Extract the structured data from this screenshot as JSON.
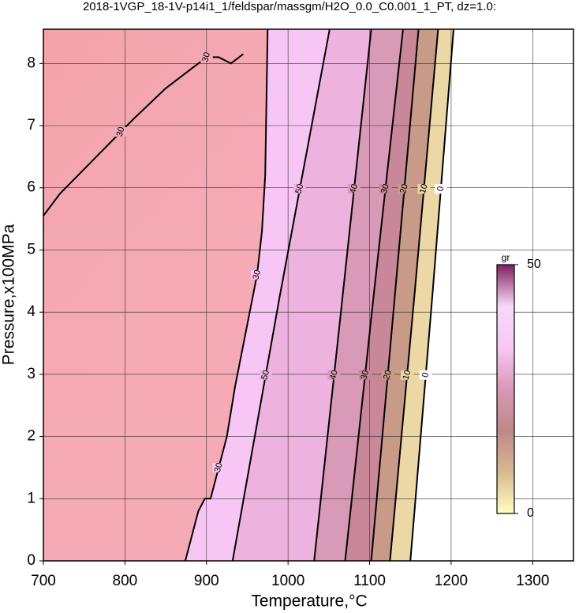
{
  "chart_data": {
    "type": "contour",
    "title": "2018-1VGP_18-1V-p14i1_1/feldspar/massgm/H2O_0.0_C0.001_1_PT, dz=1.0:",
    "x_label": "Temperature,°C",
    "y_label": "Pressure,x100MPa",
    "xlim": [
      700,
      1350
    ],
    "ylim": [
      0,
      8.55
    ],
    "xticks": [
      700,
      800,
      900,
      1000,
      1100,
      1200,
      1300
    ],
    "yticks": [
      0,
      1,
      2,
      3,
      4,
      5,
      6,
      7,
      8
    ],
    "grid": true,
    "background": "#f5aab6",
    "contours": [
      {
        "level": 30,
        "fill": "#f8c6f4",
        "x": [
          874,
          890,
          898,
          905,
          925,
          935,
          950,
          962,
          968,
          972,
          975
        ],
        "y": [
          0,
          0.8,
          1.0,
          1.0,
          2.0,
          2.8,
          3.8,
          4.6,
          5.3,
          6.2,
          8.55
        ]
      },
      {
        "level": 50,
        "fill": "#eeb2de",
        "x": [
          932,
          990,
          1051
        ],
        "y": [
          0,
          4.27,
          8.55
        ]
      },
      {
        "level": 40,
        "fill": "#d89ab6",
        "x": [
          1032,
          1067,
          1102
        ],
        "y": [
          0,
          4.27,
          8.55
        ]
      },
      {
        "level": 30,
        "fill": "#c8889a",
        "x": [
          1070,
          1105,
          1141
        ],
        "y": [
          0,
          4.27,
          8.55
        ]
      },
      {
        "level": 20,
        "fill": "#c89a88",
        "x": [
          1102,
          1131,
          1160
        ],
        "y": [
          0,
          4.27,
          8.55
        ]
      },
      {
        "level": 10,
        "fill": "#ecd8a6",
        "x": [
          1125,
          1155,
          1184
        ],
        "y": [
          0,
          4.27,
          8.55
        ]
      },
      {
        "level": 0,
        "fill": "#ffffff",
        "x": [
          1150,
          1177,
          1203
        ],
        "y": [
          0,
          4.27,
          8.55
        ]
      },
      {
        "level": 30,
        "x": [
          700,
          720,
          750,
          780,
          810,
          850,
          880,
          900,
          915,
          930,
          945
        ],
        "y": [
          5.55,
          5.9,
          6.3,
          6.7,
          7.1,
          7.6,
          7.9,
          8.1,
          8.1,
          8.0,
          8.15
        ]
      }
    ],
    "colorbar": {
      "label": "gr",
      "lim": [
        0,
        50
      ],
      "ticks": [
        0,
        50
      ],
      "colors": [
        "#ffffc0",
        "#d8b890",
        "#c08888",
        "#d898b8",
        "#f8c8f4",
        "#f8d8f8",
        "#802060"
      ]
    }
  }
}
